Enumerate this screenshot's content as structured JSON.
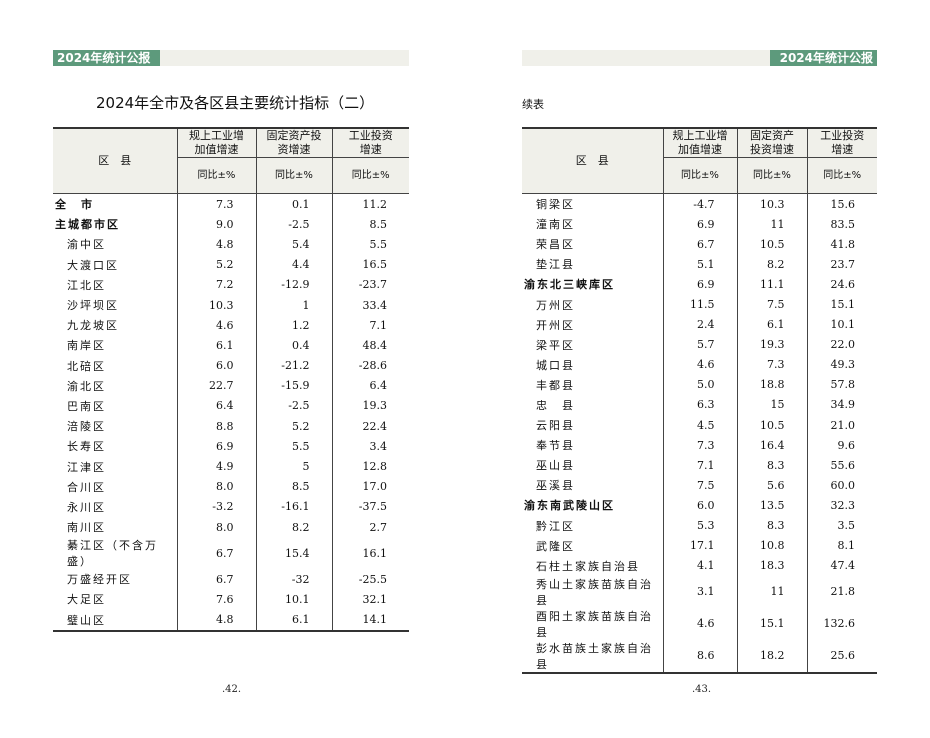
{
  "header_badge": "2024年统计公报",
  "left": {
    "title": "2024年全市及各区县主要统计指标（二）",
    "page_number": ".42."
  },
  "right": {
    "title": "续表",
    "page_number": ".43."
  },
  "columns": {
    "district": "区　县",
    "c1": "规上工业增加值增速",
    "c2": "固定资产投资增速",
    "c3": "工业投资增速",
    "unit": "同比±%"
  },
  "left_rows": [
    [
      "全　市",
      "7.3",
      "0.1",
      "11.2",
      1
    ],
    [
      "主城都市区",
      "9.0",
      "-2.5",
      "8.5",
      1
    ],
    [
      "渝中区",
      "4.8",
      "5.4",
      "5.5",
      0
    ],
    [
      "大渡口区",
      "5.2",
      "4.4",
      "16.5",
      0
    ],
    [
      "江北区",
      "7.2",
      "-12.9",
      "-23.7",
      0
    ],
    [
      "沙坪坝区",
      "10.3",
      "1",
      "33.4",
      0
    ],
    [
      "九龙坡区",
      "4.6",
      "1.2",
      "7.1",
      0
    ],
    [
      "南岸区",
      "6.1",
      "0.4",
      "48.4",
      0
    ],
    [
      "北碚区",
      "6.0",
      "-21.2",
      "-28.6",
      0
    ],
    [
      "渝北区",
      "22.7",
      "-15.9",
      "6.4",
      0
    ],
    [
      "巴南区",
      "6.4",
      "-2.5",
      "19.3",
      0
    ],
    [
      "涪陵区",
      "8.8",
      "5.2",
      "22.4",
      0
    ],
    [
      "长寿区",
      "6.9",
      "5.5",
      "3.4",
      0
    ],
    [
      "江津区",
      "4.9",
      "5",
      "12.8",
      0
    ],
    [
      "合川区",
      "8.0",
      "8.5",
      "17.0",
      0
    ],
    [
      "永川区",
      "-3.2",
      "-16.1",
      "-37.5",
      0
    ],
    [
      "南川区",
      "8.0",
      "8.2",
      "2.7",
      0
    ],
    [
      "綦江区（不含万盛）",
      "6.7",
      "15.4",
      "16.1",
      0
    ],
    [
      "万盛经开区",
      "6.7",
      "-32",
      "-25.5",
      0
    ],
    [
      "大足区",
      "7.6",
      "10.1",
      "32.1",
      0
    ],
    [
      "璧山区",
      "4.8",
      "6.1",
      "14.1",
      0
    ]
  ],
  "right_rows": [
    [
      "铜梁区",
      "-4.7",
      "10.3",
      "15.6",
      0
    ],
    [
      "潼南区",
      "6.9",
      "11",
      "83.5",
      0
    ],
    [
      "荣昌区",
      "6.7",
      "10.5",
      "41.8",
      0
    ],
    [
      "垫江县",
      "5.1",
      "8.2",
      "23.7",
      0
    ],
    [
      "渝东北三峡库区",
      "6.9",
      "11.1",
      "24.6",
      1
    ],
    [
      "万州区",
      "11.5",
      "7.5",
      "15.1",
      0
    ],
    [
      "开州区",
      "2.4",
      "6.1",
      "10.1",
      0
    ],
    [
      "梁平区",
      "5.7",
      "19.3",
      "22.0",
      0
    ],
    [
      "城口县",
      "4.6",
      "7.3",
      "49.3",
      0
    ],
    [
      "丰都县",
      "5.0",
      "18.8",
      "57.8",
      0
    ],
    [
      "忠　县",
      "6.3",
      "15",
      "34.9",
      0
    ],
    [
      "云阳县",
      "4.5",
      "10.5",
      "21.0",
      0
    ],
    [
      "奉节县",
      "7.3",
      "16.4",
      "9.6",
      0
    ],
    [
      "巫山县",
      "7.1",
      "8.3",
      "55.6",
      0
    ],
    [
      "巫溪县",
      "7.5",
      "5.6",
      "60.0",
      0
    ],
    [
      "渝东南武陵山区",
      "6.0",
      "13.5",
      "32.3",
      1
    ],
    [
      "黔江区",
      "5.3",
      "8.3",
      "3.5",
      0
    ],
    [
      "武隆区",
      "17.1",
      "10.8",
      "8.1",
      0
    ],
    [
      "石柱土家族自治县",
      "4.1",
      "18.3",
      "47.4",
      0
    ],
    [
      "秀山土家族苗族自治县",
      "3.1",
      "11",
      "21.8",
      0
    ],
    [
      "酉阳土家族苗族自治县",
      "4.6",
      "15.1",
      "132.6",
      0
    ],
    [
      "彭水苗族土家族自治县",
      "8.6",
      "18.2",
      "25.6",
      0
    ]
  ]
}
